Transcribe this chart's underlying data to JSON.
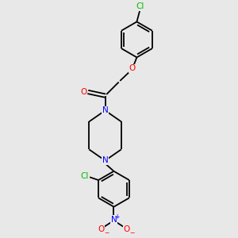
{
  "background_color": "#e8e8e8",
  "bond_color": "#000000",
  "N_color": "#0000ff",
  "O_color": "#ff0000",
  "Cl_color": "#00bb00",
  "figsize": [
    3.0,
    3.0
  ],
  "dpi": 100,
  "xlim": [
    -2.5,
    2.5
  ],
  "ylim": [
    -4.5,
    4.5
  ]
}
